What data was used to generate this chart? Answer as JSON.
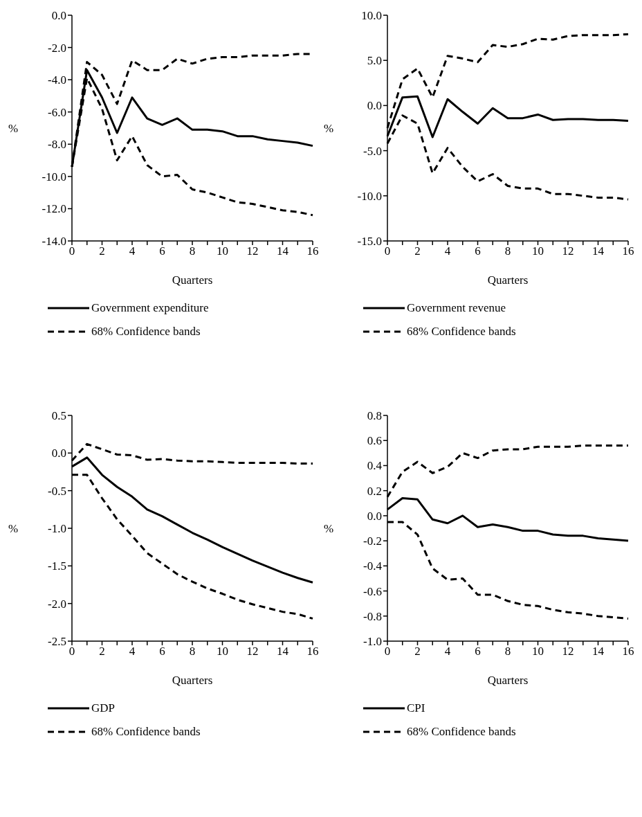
{
  "chart_data": [
    {
      "type": "line",
      "xlabel": "Quarters",
      "ylabel": "%",
      "legend": "bottom",
      "categories": [
        "0",
        null,
        "2",
        null,
        "4",
        null,
        "6",
        null,
        "8",
        null,
        "10",
        null,
        "12",
        null,
        "14",
        null,
        "16"
      ],
      "ylim": [
        -14,
        0
      ],
      "yticks": [
        {
          "value": 0,
          "label": "0.0"
        },
        {
          "value": -2,
          "label": "-2.0"
        },
        {
          "value": -4,
          "label": "-4.0"
        },
        {
          "value": -6,
          "label": "-6.0"
        },
        {
          "value": -8,
          "label": "-8.0"
        },
        {
          "value": -10,
          "label": "-10.0"
        },
        {
          "value": -12,
          "label": "-12.0"
        },
        {
          "value": -14,
          "label": "-14.0"
        }
      ],
      "series": [
        {
          "name": "Government expenditure",
          "color": "#000000",
          "line_style": "solid",
          "values": [
            -9.4,
            -3.4,
            -5.1,
            -7.3,
            -5.1,
            -6.4,
            -6.8,
            -6.4,
            -7.1,
            -7.1,
            -7.2,
            -7.5,
            -7.5,
            -7.7,
            -7.8,
            -7.9,
            -8.1
          ]
        },
        {
          "name": "68% Confidence bands",
          "color": "#000000",
          "line_style": "dashed",
          "values": [
            -9.4,
            -2.9,
            -3.7,
            -5.5,
            -2.8,
            -3.4,
            -3.4,
            -2.7,
            -3.0,
            -2.7,
            -2.6,
            -2.6,
            -2.5,
            -2.5,
            -2.5,
            -2.4,
            -2.4
          ]
        },
        {
          "color": "#000000",
          "line_style": "dashed",
          "values": [
            -9.4,
            -3.9,
            -5.8,
            -9.0,
            -7.5,
            -9.3,
            -10.0,
            -9.9,
            -10.8,
            -11.0,
            -11.3,
            -11.6,
            -11.7,
            -11.9,
            -12.1,
            -12.2,
            -12.4
          ]
        }
      ]
    },
    {
      "type": "line",
      "xlabel": "Quarters",
      "ylabel": "%",
      "legend": "bottom",
      "categories": [
        "0",
        null,
        "2",
        null,
        "4",
        null,
        "6",
        null,
        "8",
        null,
        "10",
        null,
        "12",
        null,
        "14",
        null,
        "16"
      ],
      "ylim": [
        -15,
        10
      ],
      "yticks": [
        {
          "value": 10,
          "label": "10.0"
        },
        {
          "value": 5,
          "label": "5.0"
        },
        {
          "value": 0,
          "label": "0.0"
        },
        {
          "value": -5,
          "label": "-5.0"
        },
        {
          "value": -10,
          "label": "-10.0"
        },
        {
          "value": -15,
          "label": "-15.0"
        }
      ],
      "series": [
        {
          "name": "Government revenue",
          "color": "#000000",
          "line_style": "solid",
          "values": [
            -3.4,
            0.9,
            1.0,
            -3.5,
            0.7,
            -0.7,
            -2.0,
            -0.3,
            -1.4,
            -1.4,
            -1.0,
            -1.6,
            -1.5,
            -1.5,
            -1.6,
            -1.6,
            -1.7
          ]
        },
        {
          "name": "68% Confidence bands",
          "color": "#000000",
          "line_style": "dashed",
          "values": [
            -2.5,
            2.9,
            4.1,
            0.9,
            5.5,
            5.2,
            4.8,
            6.7,
            6.5,
            6.8,
            7.4,
            7.3,
            7.7,
            7.8,
            7.8,
            7.8,
            7.9
          ]
        },
        {
          "color": "#000000",
          "line_style": "dashed",
          "values": [
            -4.2,
            -1.1,
            -2.0,
            -7.5,
            -4.7,
            -6.8,
            -8.4,
            -7.6,
            -8.9,
            -9.2,
            -9.2,
            -9.8,
            -9.8,
            -10.0,
            -10.2,
            -10.2,
            -10.4
          ]
        }
      ]
    },
    {
      "type": "line",
      "xlabel": "Quarters",
      "ylabel": "%",
      "legend": "bottom",
      "categories": [
        "0",
        null,
        "2",
        null,
        "4",
        null,
        "6",
        null,
        "8",
        null,
        "10",
        null,
        "12",
        null,
        "14",
        null,
        "16"
      ],
      "ylim": [
        -2.5,
        0.5
      ],
      "yticks": [
        {
          "value": 0.5,
          "label": "0.5"
        },
        {
          "value": 0,
          "label": "0.0"
        },
        {
          "value": -0.5,
          "label": "-0.5"
        },
        {
          "value": -1,
          "label": "-1.0"
        },
        {
          "value": -1.5,
          "label": "-1.5"
        },
        {
          "value": -2,
          "label": "-2.0"
        },
        {
          "value": -2.5,
          "label": "-2.5"
        }
      ],
      "series": [
        {
          "name": "GDP",
          "color": "#000000",
          "line_style": "solid",
          "values": [
            -0.18,
            -0.06,
            -0.29,
            -0.45,
            -0.58,
            -0.75,
            -0.84,
            -0.95,
            -1.06,
            -1.15,
            -1.25,
            -1.34,
            -1.43,
            -1.51,
            -1.59,
            -1.66,
            -1.72
          ]
        },
        {
          "name": "68% Confidence bands",
          "color": "#000000",
          "line_style": "dashed",
          "values": [
            -0.1,
            0.12,
            0.05,
            -0.02,
            -0.03,
            -0.09,
            -0.08,
            -0.1,
            -0.11,
            -0.11,
            -0.12,
            -0.13,
            -0.13,
            -0.13,
            -0.13,
            -0.14,
            -0.14
          ]
        },
        {
          "color": "#000000",
          "line_style": "dashed",
          "values": [
            -0.29,
            -0.29,
            -0.6,
            -0.88,
            -1.1,
            -1.33,
            -1.47,
            -1.61,
            -1.71,
            -1.8,
            -1.87,
            -1.95,
            -2.01,
            -2.06,
            -2.11,
            -2.14,
            -2.2
          ]
        }
      ]
    },
    {
      "type": "line",
      "xlabel": "Quarters",
      "ylabel": "%",
      "legend": "bottom",
      "categories": [
        "0",
        null,
        "2",
        null,
        "4",
        null,
        "6",
        null,
        "8",
        null,
        "10",
        null,
        "12",
        null,
        "14",
        null,
        "16"
      ],
      "ylim": [
        -1,
        0.8
      ],
      "yticks": [
        {
          "value": 0.8,
          "label": "0.8"
        },
        {
          "value": 0.6,
          "label": "0.6"
        },
        {
          "value": 0.4,
          "label": "0.4"
        },
        {
          "value": 0.2,
          "label": "0.2"
        },
        {
          "value": 0,
          "label": "0.0"
        },
        {
          "value": -0.2,
          "label": "-0.2"
        },
        {
          "value": -0.4,
          "label": "-0.4"
        },
        {
          "value": -0.6,
          "label": "-0.6"
        },
        {
          "value": -0.8,
          "label": "-0.8"
        },
        {
          "value": -1,
          "label": "-1.0"
        }
      ],
      "series": [
        {
          "name": "CPI",
          "color": "#000000",
          "line_style": "solid",
          "values": [
            0.05,
            0.14,
            0.13,
            -0.03,
            -0.06,
            0.0,
            -0.09,
            -0.07,
            -0.09,
            -0.12,
            -0.12,
            -0.15,
            -0.16,
            -0.16,
            -0.18,
            -0.19,
            -0.2
          ]
        },
        {
          "name": "68% Confidence bands",
          "color": "#000000",
          "line_style": "dashed",
          "values": [
            0.15,
            0.35,
            0.43,
            0.34,
            0.39,
            0.5,
            0.46,
            0.52,
            0.53,
            0.53,
            0.55,
            0.55,
            0.55,
            0.56,
            0.56,
            0.56,
            0.56
          ]
        },
        {
          "color": "#000000",
          "line_style": "dashed",
          "values": [
            -0.05,
            -0.05,
            -0.15,
            -0.42,
            -0.51,
            -0.5,
            -0.63,
            -0.63,
            -0.68,
            -0.71,
            -0.72,
            -0.75,
            -0.77,
            -0.78,
            -0.8,
            -0.81,
            -0.82
          ]
        }
      ]
    }
  ]
}
